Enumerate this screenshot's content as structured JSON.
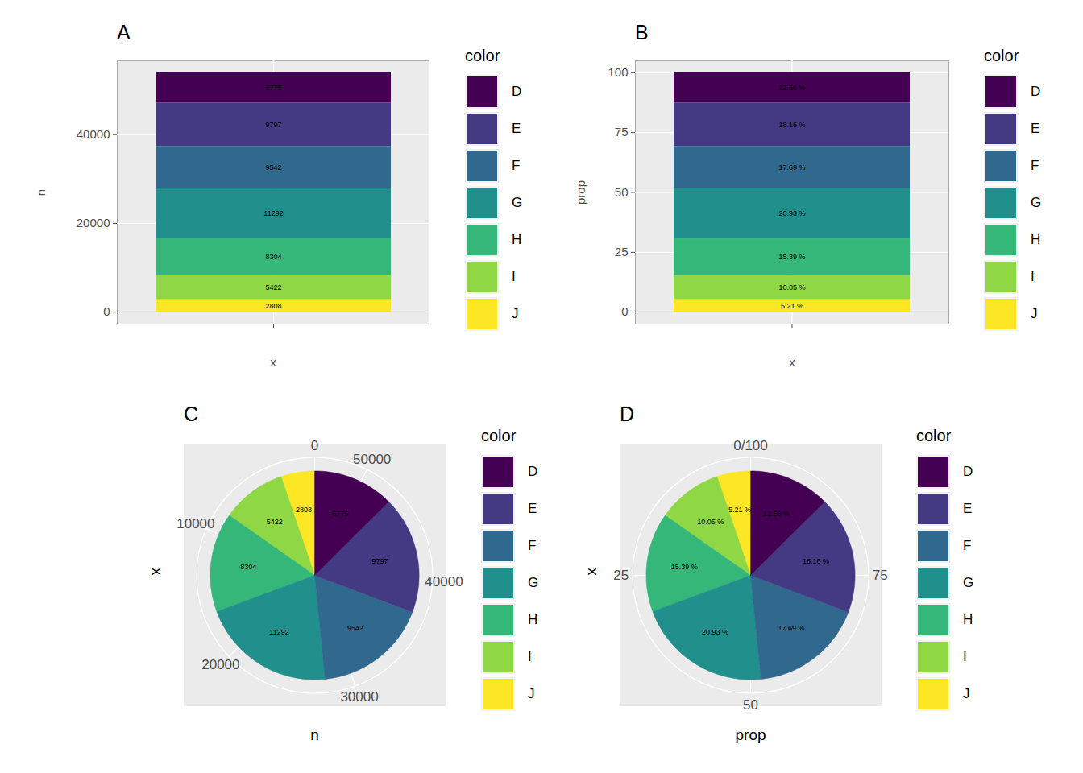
{
  "chart_data": [
    {
      "type": "bar",
      "title": "A",
      "x_label": "x",
      "y_label": "n",
      "legend_title": "color",
      "categories": [
        null
      ],
      "stacked": true,
      "data_labels": true,
      "grid": true,
      "legend": "right",
      "ylim": [
        -2697,
        56637
      ],
      "yticks": [
        0,
        20000,
        40000
      ],
      "series": [
        {
          "name": "D",
          "color": "#440154",
          "values": [
            6775
          ]
        },
        {
          "name": "E",
          "color": "#443A83",
          "values": [
            9797
          ]
        },
        {
          "name": "F",
          "color": "#31688E",
          "values": [
            9542
          ]
        },
        {
          "name": "G",
          "color": "#21908C",
          "values": [
            11292
          ]
        },
        {
          "name": "H",
          "color": "#35B779",
          "values": [
            8304
          ]
        },
        {
          "name": "I",
          "color": "#8FD744",
          "values": [
            5422
          ]
        },
        {
          "name": "J",
          "color": "#FDE725",
          "values": [
            2808
          ]
        }
      ]
    },
    {
      "type": "bar",
      "title": "B",
      "x_label": "x",
      "y_label": "prop",
      "legend_title": "color",
      "categories": [
        null
      ],
      "stacked": true,
      "data_labels": true,
      "grid": true,
      "legend": "right",
      "ylim": [
        -5,
        105
      ],
      "yticks": [
        0,
        25,
        50,
        75,
        100
      ],
      "series": [
        {
          "name": "D",
          "color": "#440154",
          "values": [
            12.56
          ],
          "value_labels": [
            "12.56 %"
          ]
        },
        {
          "name": "E",
          "color": "#443A83",
          "values": [
            18.16
          ],
          "value_labels": [
            "18.16 %"
          ]
        },
        {
          "name": "F",
          "color": "#31688E",
          "values": [
            17.69
          ],
          "value_labels": [
            "17.69 %"
          ]
        },
        {
          "name": "G",
          "color": "#21908C",
          "values": [
            20.93
          ],
          "value_labels": [
            "20.93 %"
          ]
        },
        {
          "name": "H",
          "color": "#35B779",
          "values": [
            15.39
          ],
          "value_labels": [
            "15.39 %"
          ]
        },
        {
          "name": "I",
          "color": "#8FD744",
          "values": [
            10.05
          ],
          "value_labels": [
            "10.05 %"
          ]
        },
        {
          "name": "J",
          "color": "#FDE725",
          "values": [
            5.21
          ],
          "value_labels": [
            "5.21 %"
          ]
        }
      ]
    },
    {
      "type": "pie",
      "title": "C",
      "x_label": "n",
      "y_label": "x",
      "legend_title": "color",
      "categories": [
        null
      ],
      "data_labels": true,
      "grid": true,
      "legend": "right",
      "xlim": [
        0,
        53940
      ],
      "xticks": [
        0,
        10000,
        20000,
        30000,
        40000,
        50000
      ],
      "series": [
        {
          "name": "D",
          "color": "#440154",
          "values": [
            6775
          ]
        },
        {
          "name": "E",
          "color": "#443A83",
          "values": [
            9797
          ]
        },
        {
          "name": "F",
          "color": "#31688E",
          "values": [
            9542
          ]
        },
        {
          "name": "G",
          "color": "#21908C",
          "values": [
            11292
          ]
        },
        {
          "name": "H",
          "color": "#35B779",
          "values": [
            8304
          ]
        },
        {
          "name": "I",
          "color": "#8FD744",
          "values": [
            5422
          ]
        },
        {
          "name": "J",
          "color": "#FDE725",
          "values": [
            2808
          ]
        }
      ]
    },
    {
      "type": "pie",
      "title": "D",
      "x_label": "prop",
      "y_label": "x",
      "legend_title": "color",
      "categories": [
        null
      ],
      "data_labels": true,
      "grid": true,
      "legend": "right",
      "xlim": [
        0,
        100
      ],
      "xticks": [
        {
          "value": 0,
          "label": "0/100"
        },
        25,
        50,
        75
      ],
      "series": [
        {
          "name": "D",
          "color": "#440154",
          "values": [
            12.56
          ],
          "value_labels": [
            "12.56 %"
          ]
        },
        {
          "name": "E",
          "color": "#443A83",
          "values": [
            18.16
          ],
          "value_labels": [
            "18.16 %"
          ]
        },
        {
          "name": "F",
          "color": "#31688E",
          "values": [
            17.69
          ],
          "value_labels": [
            "17.69 %"
          ]
        },
        {
          "name": "G",
          "color": "#21908C",
          "values": [
            20.93
          ],
          "value_labels": [
            "20.93 %"
          ]
        },
        {
          "name": "H",
          "color": "#35B779",
          "values": [
            15.39
          ],
          "value_labels": [
            "15.39 %"
          ]
        },
        {
          "name": "I",
          "color": "#8FD744",
          "values": [
            10.05
          ],
          "value_labels": [
            "10.05 %"
          ]
        },
        {
          "name": "J",
          "color": "#FDE725",
          "values": [
            5.21
          ],
          "value_labels": [
            "5.21 %"
          ]
        }
      ]
    }
  ]
}
